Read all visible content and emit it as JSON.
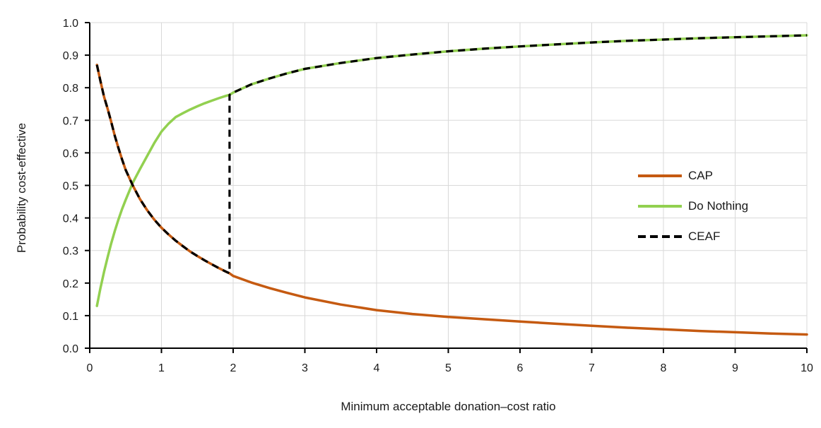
{
  "chart_data": {
    "type": "line",
    "title": "",
    "xlabel": "Minimum acceptable donation–cost ratio",
    "ylabel": "Probability cost-effective",
    "xlim": [
      0,
      10
    ],
    "ylim": [
      0.0,
      1.0
    ],
    "grid": true,
    "legend_position": "center-right",
    "x_tick_values": [
      0,
      1,
      2,
      3,
      4,
      5,
      6,
      7,
      8,
      9,
      10
    ],
    "x_tick_labels": [
      "0",
      "1",
      "2",
      "3",
      "4",
      "5",
      "6",
      "7",
      "8",
      "9",
      "10"
    ],
    "y_tick_values": [
      0.0,
      0.1,
      0.2,
      0.3,
      0.4,
      0.5,
      0.6,
      0.7,
      0.8,
      0.9,
      1.0
    ],
    "y_tick_labels": [
      "0.0",
      "0.1",
      "0.2",
      "0.3",
      "0.4",
      "0.5",
      "0.6",
      "0.7",
      "0.8",
      "0.9",
      "1.0"
    ],
    "colors": {
      "grid": "#D9D9D9",
      "axis": "#000000",
      "text": "#1A1A1A",
      "background": "#FFFFFF"
    },
    "x": [
      0.1,
      0.15,
      0.2,
      0.25,
      0.3,
      0.35,
      0.4,
      0.45,
      0.5,
      0.6,
      0.7,
      0.8,
      0.9,
      1.0,
      1.1,
      1.2,
      1.3,
      1.4,
      1.5,
      1.6,
      1.7,
      1.8,
      1.9,
      1.95,
      2.0,
      2.25,
      2.5,
      2.75,
      3.0,
      3.5,
      4.0,
      4.5,
      5.0,
      5.5,
      6.0,
      6.5,
      7.0,
      7.5,
      8.0,
      8.5,
      9.0,
      9.5,
      10.0
    ],
    "series": [
      {
        "name": "CAP",
        "color": "#C55A11",
        "style": "solid",
        "values": [
          0.87,
          0.82,
          0.772,
          0.735,
          0.695,
          0.652,
          0.615,
          0.58,
          0.548,
          0.5,
          0.458,
          0.424,
          0.395,
          0.37,
          0.349,
          0.33,
          0.313,
          0.297,
          0.283,
          0.27,
          0.258,
          0.246,
          0.235,
          0.23,
          0.222,
          0.202,
          0.185,
          0.17,
          0.156,
          0.134,
          0.117,
          0.105,
          0.096,
          0.089,
          0.082,
          0.075,
          0.069,
          0.063,
          0.058,
          0.053,
          0.049,
          0.045,
          0.042
        ]
      },
      {
        "name": "Do Nothing",
        "color": "#92D050",
        "style": "solid",
        "values": [
          0.13,
          0.185,
          0.235,
          0.28,
          0.322,
          0.36,
          0.395,
          0.427,
          0.455,
          0.508,
          0.55,
          0.59,
          0.63,
          0.665,
          0.69,
          0.71,
          0.722,
          0.733,
          0.743,
          0.752,
          0.76,
          0.768,
          0.775,
          0.778,
          0.785,
          0.81,
          0.828,
          0.844,
          0.858,
          0.876,
          0.891,
          0.902,
          0.912,
          0.92,
          0.927,
          0.933,
          0.939,
          0.944,
          0.948,
          0.952,
          0.955,
          0.958,
          0.961
        ]
      },
      {
        "name": "CEAF",
        "color": "#000000",
        "style": "dashed",
        "dash": [
          10,
          7
        ],
        "switch_x": 1.95,
        "definition": "Follows CAP for ratio below ~1.95, vertical step at ~1.95, follows Do Nothing above",
        "points": [
          [
            0.1,
            0.87
          ],
          [
            0.15,
            0.82
          ],
          [
            0.2,
            0.772
          ],
          [
            0.25,
            0.735
          ],
          [
            0.3,
            0.695
          ],
          [
            0.35,
            0.652
          ],
          [
            0.4,
            0.615
          ],
          [
            0.45,
            0.58
          ],
          [
            0.5,
            0.548
          ],
          [
            0.6,
            0.5
          ],
          [
            0.7,
            0.458
          ],
          [
            0.8,
            0.424
          ],
          [
            0.9,
            0.395
          ],
          [
            1.0,
            0.37
          ],
          [
            1.1,
            0.349
          ],
          [
            1.2,
            0.33
          ],
          [
            1.3,
            0.313
          ],
          [
            1.4,
            0.297
          ],
          [
            1.5,
            0.283
          ],
          [
            1.6,
            0.27
          ],
          [
            1.7,
            0.258
          ],
          [
            1.8,
            0.246
          ],
          [
            1.9,
            0.235
          ],
          [
            1.95,
            0.23
          ],
          [
            1.95,
            0.778
          ],
          [
            2.0,
            0.785
          ],
          [
            2.25,
            0.81
          ],
          [
            2.5,
            0.828
          ],
          [
            2.75,
            0.844
          ],
          [
            3.0,
            0.858
          ],
          [
            3.5,
            0.876
          ],
          [
            4.0,
            0.891
          ],
          [
            4.5,
            0.902
          ],
          [
            5.0,
            0.912
          ],
          [
            5.5,
            0.92
          ],
          [
            6.0,
            0.927
          ],
          [
            6.5,
            0.933
          ],
          [
            7.0,
            0.939
          ],
          [
            7.5,
            0.944
          ],
          [
            8.0,
            0.948
          ],
          [
            8.5,
            0.952
          ],
          [
            9.0,
            0.955
          ],
          [
            9.5,
            0.958
          ],
          [
            10.0,
            0.961
          ]
        ]
      }
    ]
  }
}
